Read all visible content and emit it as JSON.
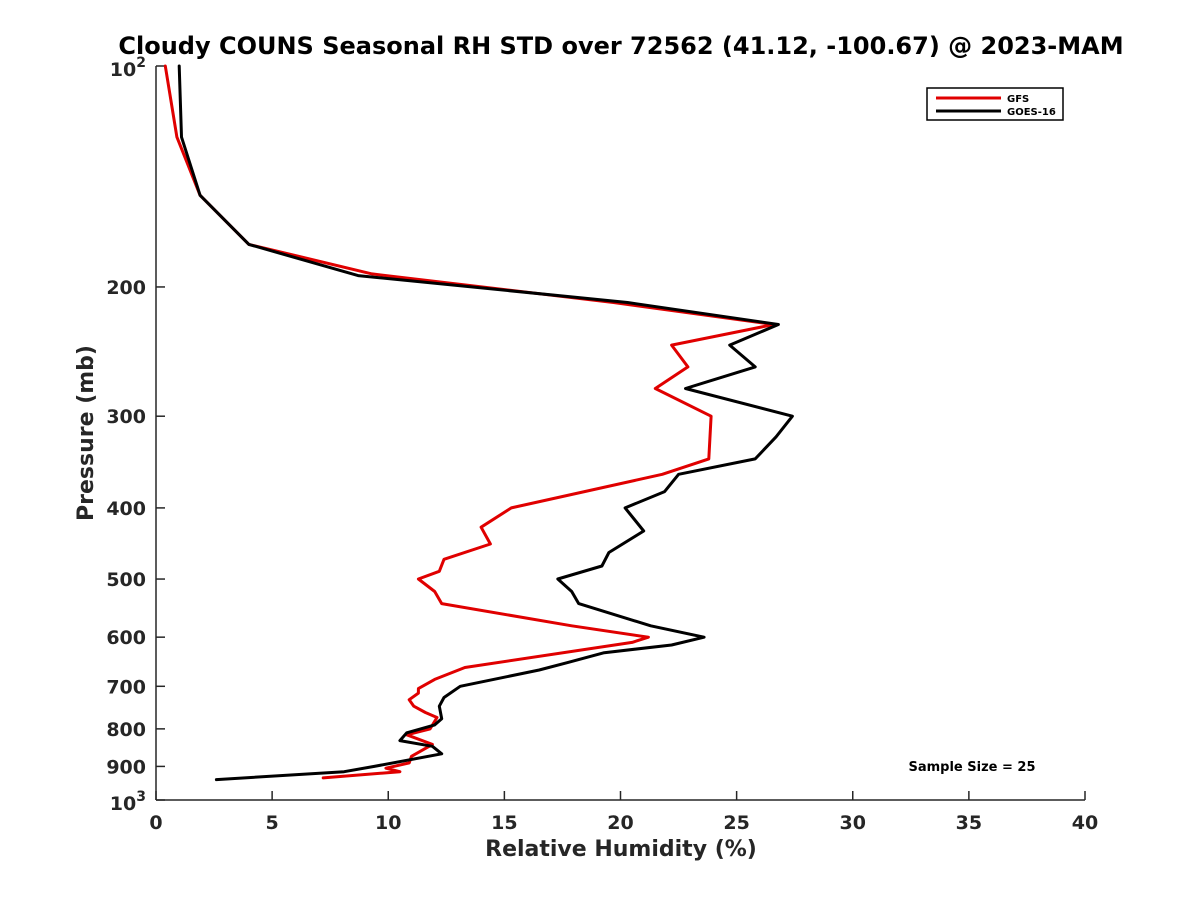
{
  "chart_data": {
    "type": "line",
    "title": "Cloudy COUNS Seasonal RH STD over 72562 (41.12, -100.67) @ 2023-MAM",
    "xlabel": "Relative Humidity (%)",
    "ylabel": "Pressure (mb)",
    "xlim": [
      0,
      40
    ],
    "ylim": [
      100,
      1000
    ],
    "yscale": "log",
    "y_reversed": true,
    "grid": false,
    "legend_position": "top-right",
    "x_ticks": [
      "0",
      "5",
      "10",
      "15",
      "20",
      "25",
      "30",
      "35",
      "40"
    ],
    "y_ticks": [
      {
        "value": 100,
        "base": "10",
        "exp": "2"
      },
      {
        "value": 200,
        "label": "200"
      },
      {
        "value": 300,
        "label": "300"
      },
      {
        "value": 400,
        "label": "400"
      },
      {
        "value": 500,
        "label": "500"
      },
      {
        "value": 600,
        "label": "600"
      },
      {
        "value": 700,
        "label": "700"
      },
      {
        "value": 800,
        "label": "800"
      },
      {
        "value": 900,
        "label": "900"
      },
      {
        "value": 1000,
        "base": "10",
        "exp": "3"
      }
    ],
    "annotation": "Sample Size = 25",
    "series": [
      {
        "name": "GFS",
        "color": "#e00000",
        "points": [
          [
            0.4,
            100
          ],
          [
            0.9,
            125
          ],
          [
            1.9,
            150
          ],
          [
            4.0,
            175
          ],
          [
            9.3,
            192
          ],
          [
            19.7,
            210
          ],
          [
            26.6,
            225
          ],
          [
            22.2,
            240
          ],
          [
            22.9,
            257
          ],
          [
            21.5,
            275
          ],
          [
            23.9,
            300
          ],
          [
            23.8,
            343
          ],
          [
            21.8,
            360
          ],
          [
            15.3,
            400
          ],
          [
            14.0,
            425
          ],
          [
            14.4,
            448
          ],
          [
            12.4,
            470
          ],
          [
            12.2,
            488
          ],
          [
            11.3,
            500
          ],
          [
            12.0,
            520
          ],
          [
            12.3,
            540
          ],
          [
            17.9,
            579
          ],
          [
            21.2,
            600
          ],
          [
            20.5,
            610
          ],
          [
            13.3,
            660
          ],
          [
            12.0,
            685
          ],
          [
            11.3,
            705
          ],
          [
            11.3,
            715
          ],
          [
            10.9,
            730
          ],
          [
            11.1,
            745
          ],
          [
            11.6,
            760
          ],
          [
            12.1,
            772
          ],
          [
            11.8,
            800
          ],
          [
            10.8,
            815
          ],
          [
            11.9,
            840
          ],
          [
            11.0,
            872
          ],
          [
            10.9,
            890
          ],
          [
            9.9,
            905
          ],
          [
            10.5,
            915
          ],
          [
            7.2,
            933
          ]
        ]
      },
      {
        "name": "GOES-16",
        "color": "#000000",
        "points": [
          [
            1.0,
            100
          ],
          [
            1.1,
            125
          ],
          [
            1.9,
            150
          ],
          [
            4.0,
            175
          ],
          [
            8.7,
            193
          ],
          [
            20.3,
            210
          ],
          [
            26.8,
            225
          ],
          [
            24.7,
            240
          ],
          [
            25.8,
            257
          ],
          [
            22.8,
            275
          ],
          [
            27.4,
            300
          ],
          [
            26.7,
            320
          ],
          [
            25.8,
            343
          ],
          [
            22.5,
            360
          ],
          [
            21.9,
            380
          ],
          [
            20.2,
            400
          ],
          [
            21.0,
            430
          ],
          [
            19.5,
            460
          ],
          [
            19.2,
            480
          ],
          [
            17.3,
            500
          ],
          [
            17.9,
            520
          ],
          [
            18.2,
            540
          ],
          [
            21.3,
            579
          ],
          [
            23.6,
            600
          ],
          [
            22.2,
            615
          ],
          [
            19.3,
            630
          ],
          [
            17.7,
            650
          ],
          [
            16.5,
            665
          ],
          [
            13.1,
            700
          ],
          [
            12.4,
            725
          ],
          [
            12.2,
            745
          ],
          [
            12.3,
            775
          ],
          [
            12.0,
            790
          ],
          [
            10.8,
            810
          ],
          [
            10.5,
            830
          ],
          [
            11.9,
            845
          ],
          [
            12.3,
            865
          ],
          [
            9.4,
            900
          ],
          [
            8.1,
            915
          ],
          [
            2.6,
            938
          ]
        ]
      }
    ]
  }
}
